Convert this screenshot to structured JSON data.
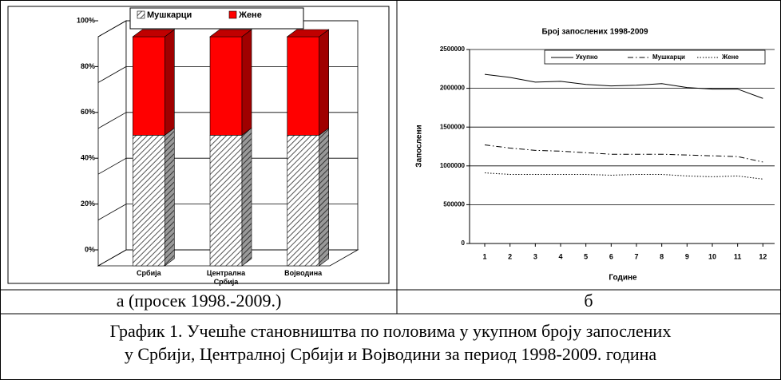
{
  "chart_data": [
    {
      "type": "bar",
      "stacked": true,
      "three_d": true,
      "categories": [
        "Србија",
        "Централна Србија",
        "Војводина"
      ],
      "series": [
        {
          "name": "Мушкарци",
          "color": "#ffffff",
          "pattern": "hatch",
          "values": [
            57,
            57,
            57
          ]
        },
        {
          "name": "Жене",
          "color": "#ff0000",
          "values": [
            43,
            43,
            43
          ]
        }
      ],
      "ylim": [
        0,
        100
      ],
      "yticks": [
        {
          "value": 0,
          "label": "0%"
        },
        {
          "value": 20,
          "label": "20%"
        },
        {
          "value": 40,
          "label": "40%"
        },
        {
          "value": 60,
          "label": "60%"
        },
        {
          "value": 80,
          "label": "80%"
        },
        {
          "value": 100,
          "label": "100%"
        }
      ],
      "grid": true,
      "legend": "top"
    },
    {
      "type": "line",
      "title": "Број запослених 1998-2009",
      "x": [
        1,
        2,
        3,
        4,
        5,
        6,
        7,
        8,
        9,
        10,
        11,
        12
      ],
      "xlabel": "Године",
      "ylabel": "Запослени",
      "series": [
        {
          "name": "Укупно",
          "color": "#000000",
          "style": "solid",
          "values": [
            2180000,
            2140000,
            2080000,
            2090000,
            2050000,
            2030000,
            2040000,
            2060000,
            2010000,
            1990000,
            1990000,
            1870000
          ]
        },
        {
          "name": "Мушкарци",
          "color": "#000000",
          "style": "dashdot",
          "values": [
            1270000,
            1230000,
            1200000,
            1190000,
            1170000,
            1150000,
            1150000,
            1150000,
            1140000,
            1130000,
            1120000,
            1050000
          ]
        },
        {
          "name": "Жене",
          "color": "#000000",
          "style": "dotted",
          "values": [
            910000,
            890000,
            890000,
            890000,
            890000,
            880000,
            890000,
            890000,
            870000,
            860000,
            870000,
            830000
          ]
        }
      ],
      "xlim": [
        0.4,
        12.4
      ],
      "xticks": [
        1,
        2,
        3,
        4,
        5,
        6,
        7,
        8,
        9,
        10,
        11,
        12
      ],
      "ylim": [
        0,
        2500000
      ],
      "yticks": [
        0,
        500000,
        1000000,
        1500000,
        2000000,
        2500000
      ],
      "grid": true,
      "legend": "top-right"
    }
  ],
  "table": {
    "subcaptions": [
      "а (просек 1998.-2009.)",
      "б"
    ],
    "caption": [
      "График 1. Учешће становништва по половима у укупном броју запослених",
      "у Србији, Централној Србији и Војводини за период 1998-2009. година"
    ]
  }
}
